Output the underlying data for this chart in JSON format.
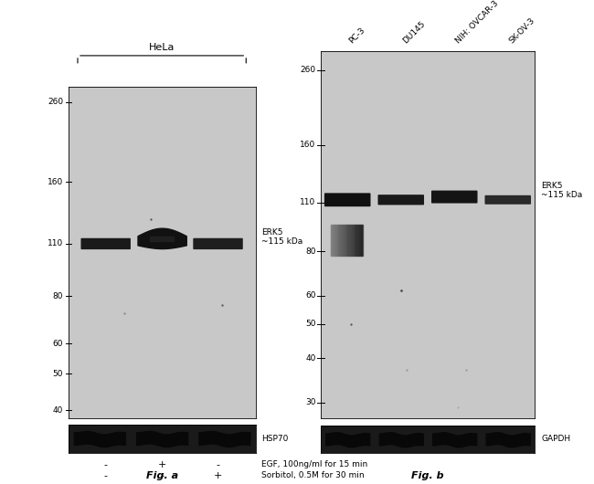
{
  "fig_a": {
    "title": "HeLa",
    "panel_bg": "#c8c8c8",
    "lower_panel_bg": "#1a1a1a",
    "mw_markers_left": [
      260,
      160,
      110,
      80,
      60,
      50,
      40
    ],
    "main_band_label": "ERK5\n~115 kDa",
    "loading_label": "HSP70",
    "lanes": 3,
    "egf_signs": [
      "-",
      "+",
      "-"
    ],
    "sorbitol_signs": [
      "-",
      "-",
      "+"
    ],
    "egf_label": "EGF, 100ng/ml for 15 min",
    "sorbitol_label": "Sorbitol, 0.5M for 30 min",
    "fig_label": "Fig. a"
  },
  "fig_b": {
    "lane_labels": [
      "PC-3",
      "DU145",
      "NIH: OVCAR-3",
      "SK-OV-3"
    ],
    "panel_bg": "#c8c8c8",
    "lower_panel_bg": "#1a1a1a",
    "mw_markers_left": [
      260,
      160,
      110,
      80,
      60,
      50,
      40,
      30
    ],
    "main_band_label": "ERK5\n~115 kDa",
    "loading_label": "GAPDH",
    "lanes": 4,
    "fig_label": "Fig. b"
  },
  "background_color": "#ffffff"
}
